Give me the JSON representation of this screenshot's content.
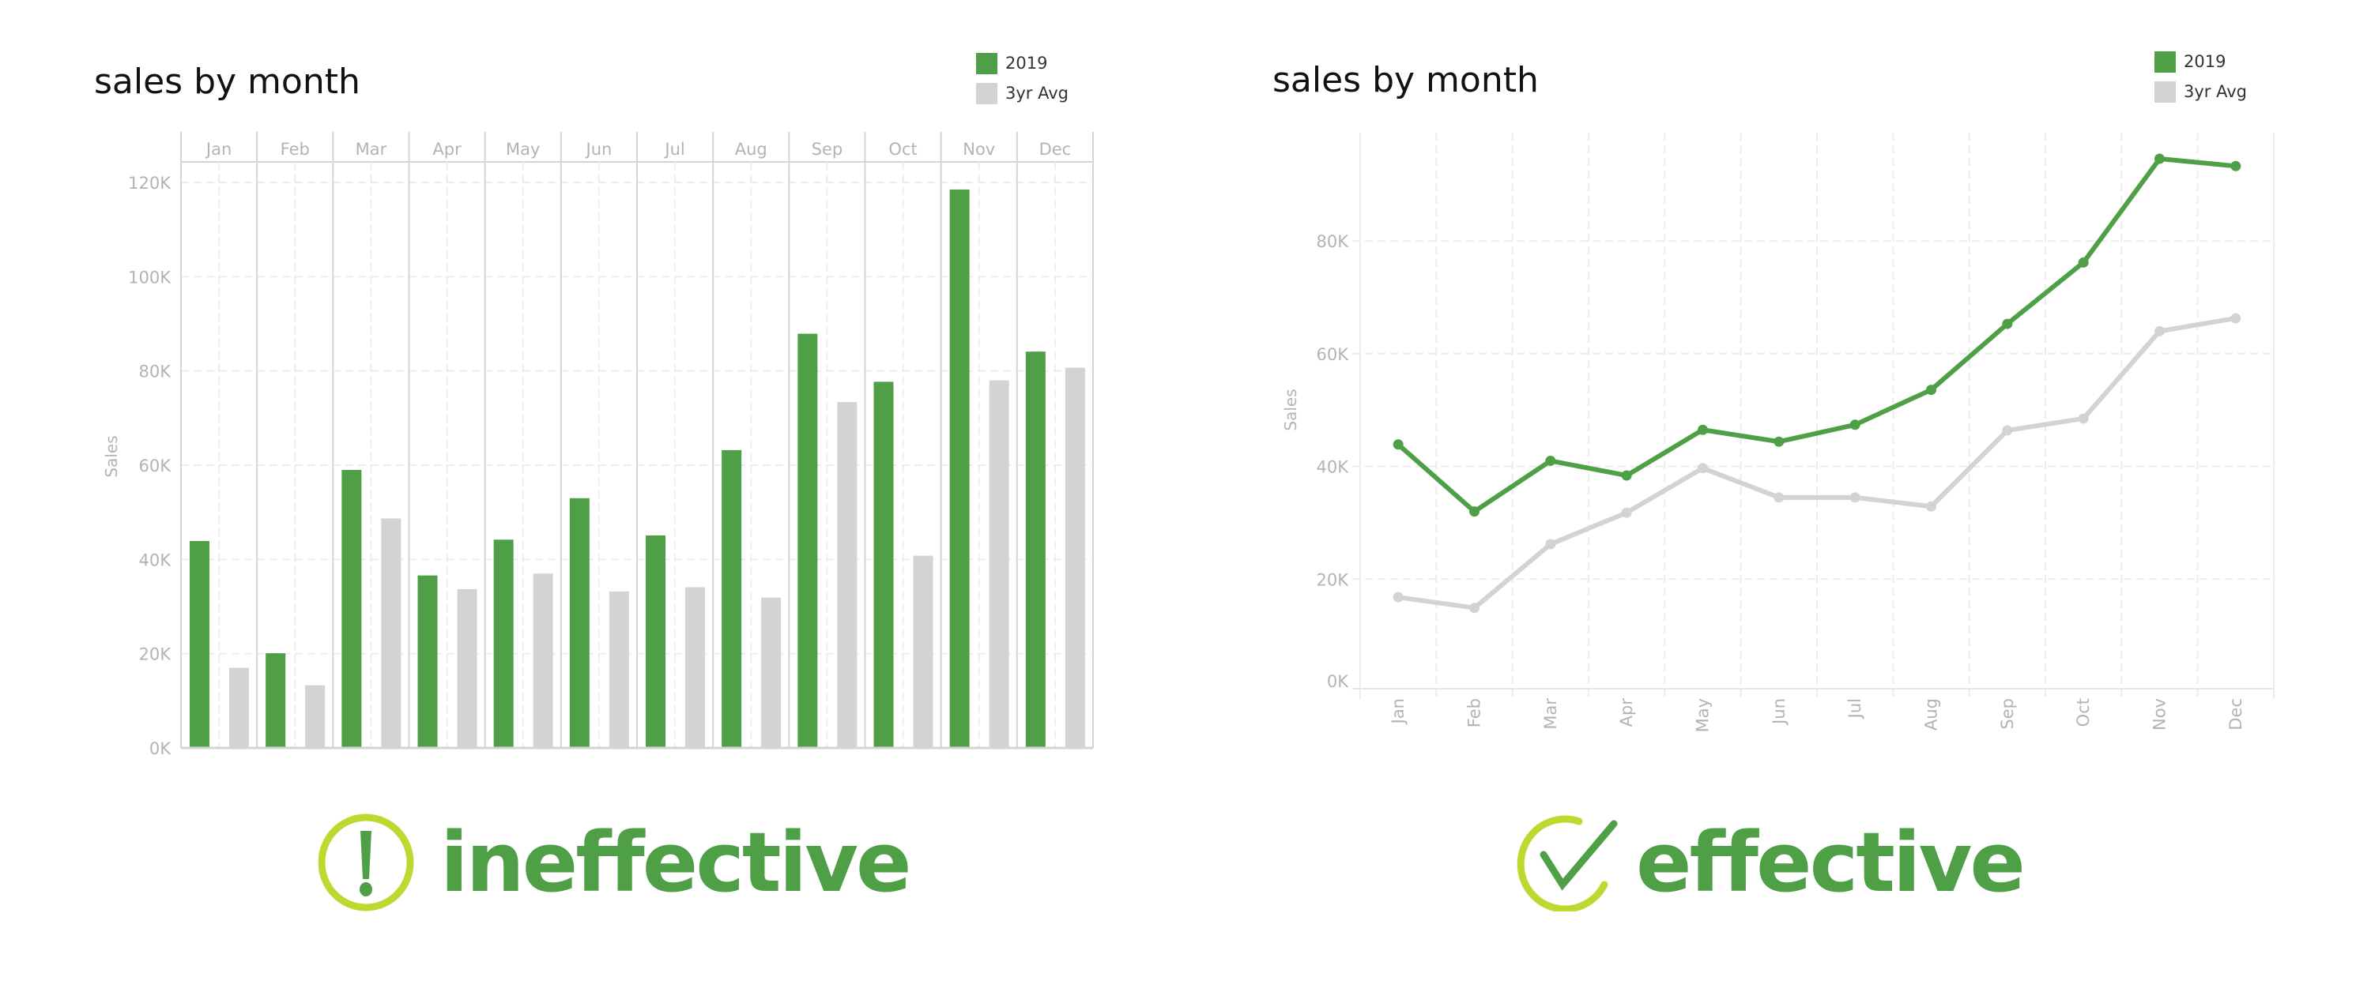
{
  "colors": {
    "primary": "#4f9f47",
    "secondary": "#d3d3d3",
    "accent_ring": "#c0d730",
    "axis_text": "#b3b3b3",
    "divider": "#d4d4d4",
    "grid": "#ececec"
  },
  "left_panel": {
    "title": "sales by month",
    "legend": [
      {
        "label": "2019",
        "color": "#4f9f47"
      },
      {
        "label": "3yr Avg",
        "color": "#d3d3d3"
      }
    ],
    "verdict": {
      "icon": "exclamation-circle-icon",
      "label": "ineffective"
    }
  },
  "right_panel": {
    "title": "sales by month",
    "legend": [
      {
        "label": "2019",
        "color": "#4f9f47"
      },
      {
        "label": "3yr Avg",
        "color": "#d3d3d3"
      }
    ],
    "verdict": {
      "icon": "checkmark-circle-icon",
      "label": "effective"
    }
  },
  "chart_data": [
    {
      "type": "bar",
      "title": "sales by month",
      "xlabel": "",
      "ylabel": "Sales",
      "categories": [
        "Jan",
        "Feb",
        "Mar",
        "Apr",
        "May",
        "Jun",
        "Jul",
        "Aug",
        "Sep",
        "Oct",
        "Nov",
        "Dec"
      ],
      "series": [
        {
          "name": "2019",
          "values": [
            43900,
            20100,
            59000,
            36600,
            44200,
            53000,
            45100,
            63200,
            87900,
            77700,
            118500,
            84100
          ]
        },
        {
          "name": "3yr Avg",
          "values": [
            17000,
            13300,
            48700,
            33700,
            37000,
            33200,
            34100,
            31900,
            73400,
            40800,
            78000,
            80700
          ]
        }
      ],
      "yticks": [
        "0K",
        "20K",
        "40K",
        "60K",
        "80K",
        "100K",
        "120K"
      ],
      "ylim": [
        0,
        120000
      ],
      "grid": true,
      "legend_position": "top-right",
      "layout": "month columns as header panes, grouped bars"
    },
    {
      "type": "line",
      "title": "sales by month",
      "xlabel": "",
      "ylabel": "Sales",
      "categories": [
        "Jan",
        "Feb",
        "Mar",
        "Apr",
        "May",
        "Jun",
        "Jul",
        "Aug",
        "Sep",
        "Oct",
        "Nov",
        "Dec"
      ],
      "series": [
        {
          "name": "2019",
          "values": [
            43900,
            32000,
            41000,
            38400,
            46500,
            44400,
            47400,
            53600,
            65300,
            76200,
            94600,
            93300
          ]
        },
        {
          "name": "3yr Avg",
          "values": [
            16800,
            14900,
            26200,
            31800,
            39700,
            34500,
            34500,
            32900,
            46400,
            48500,
            64000,
            66300
          ]
        }
      ],
      "yticks": [
        "0K",
        "20K",
        "40K",
        "60K",
        "80K"
      ],
      "ylim": [
        0,
        100000
      ],
      "grid": true,
      "legend_position": "top-right",
      "x_tick_rotation": -90
    }
  ]
}
